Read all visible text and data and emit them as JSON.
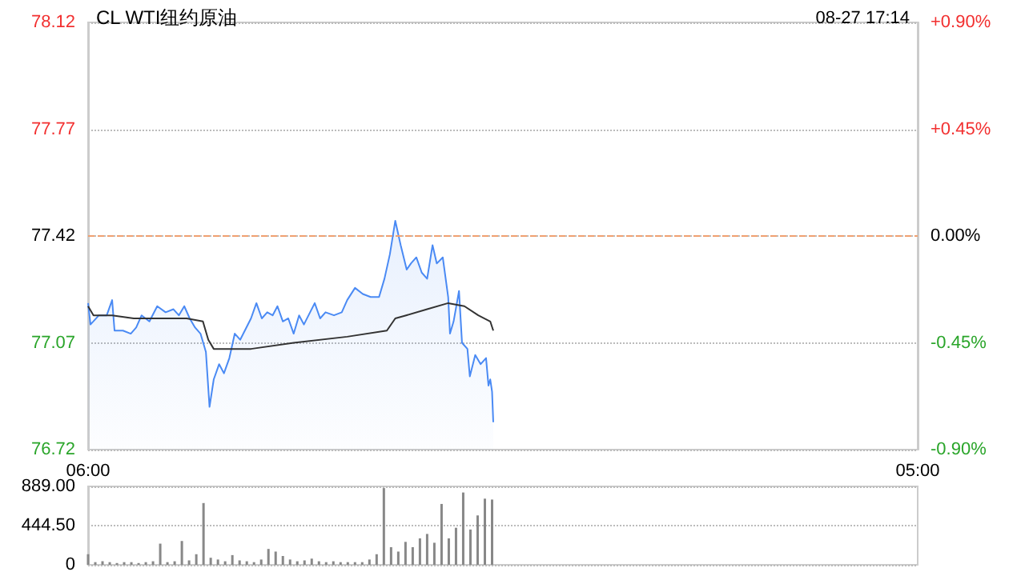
{
  "chart_data": [
    {
      "type": "line",
      "title": "CL WTI纽约原油",
      "annotations": [
        "08-27 17:14"
      ],
      "xlim": [
        "--08-27T06:00",
        "--08-28T05:00"
      ],
      "xticks": [
        {
          "value": "--08-27T06:00",
          "label": "06:00"
        },
        {
          "value": "--08-28T05:00",
          "label": "05:00"
        }
      ],
      "ylim": [
        76.72,
        78.12
      ],
      "yticks": [
        76.72,
        77.07,
        77.42,
        77.77,
        78.12
      ],
      "y2lim": [
        -0.9,
        0.9
      ],
      "y2ticks": [
        {
          "value": -0.9,
          "label": "-0.90%"
        },
        {
          "value": -0.45,
          "label": "-0.45%"
        },
        {
          "value": 0,
          "label": "0.00%"
        },
        {
          "value": 0.45,
          "label": "+0.45%"
        },
        {
          "value": 0.9,
          "label": "+0.90%"
        }
      ],
      "grid": "y",
      "marker": "none",
      "ref_lines": [
        {
          "axis": "y",
          "value": 77.42,
          "color": "#f0a070",
          "line_style": "dashed"
        }
      ],
      "series": [
        {
          "type": "area",
          "color": "#4a8af4",
          "x": [
            "--08-27T06:00",
            "--08-27T06:04",
            "--08-27T06:18",
            "--08-27T06:31",
            "--08-27T06:40",
            "--08-27T06:44",
            "--08-27T06:58",
            "--08-27T07:11",
            "--08-27T07:20",
            "--08-27T07:29",
            "--08-27T07:42",
            "--08-27T07:55",
            "--08-27T08:09",
            "--08-27T08:22",
            "--08-27T08:31",
            "--08-27T08:40",
            "--08-27T08:49",
            "--08-27T08:58",
            "--08-27T09:07",
            "--08-27T09:16",
            "--08-27T09:22",
            "--08-27T09:29",
            "--08-27T09:38",
            "--08-27T09:46",
            "--08-27T09:55",
            "--08-27T10:04",
            "--08-27T10:13",
            "--08-27T10:31",
            "--08-27T10:40",
            "--08-27T10:49",
            "--08-27T10:58",
            "--08-27T11:07",
            "--08-27T11:15",
            "--08-27T11:24",
            "--08-27T11:33",
            "--08-27T11:42",
            "--08-27T11:51",
            "--08-27T11:59",
            "--08-27T12:17",
            "--08-27T12:26",
            "--08-27T12:35",
            "--08-27T12:49",
            "--08-27T13:02",
            "--08-27T13:11",
            "--08-27T13:24",
            "--08-27T13:37",
            "--08-27T13:50",
            "--08-27T14:04",
            "--08-27T14:13",
            "--08-27T14:22",
            "--08-27T14:31",
            "--08-27T14:40",
            "--08-27T14:50",
            "--08-27T14:57",
            "--08-27T15:06",
            "--08-27T15:15",
            "--08-27T15:24",
            "--08-27T15:33",
            "--08-27T15:40",
            "--08-27T15:50",
            "--08-27T15:59",
            "--08-27T16:02",
            "--08-27T16:08",
            "--08-27T16:17",
            "--08-27T16:22",
            "--08-27T16:31",
            "--08-27T16:35",
            "--08-27T16:44",
            "--08-27T16:53",
            "--08-27T17:02",
            "--08-27T17:06",
            "--08-27T17:09",
            "--08-27T17:12",
            "--08-27T17:14"
          ],
          "values": [
            77.2,
            77.13,
            77.16,
            77.16,
            77.21,
            77.11,
            77.11,
            77.1,
            77.12,
            77.16,
            77.14,
            77.19,
            77.17,
            77.18,
            77.16,
            77.19,
            77.15,
            77.12,
            77.1,
            77.04,
            76.86,
            76.95,
            77.0,
            76.97,
            77.02,
            77.1,
            77.08,
            77.15,
            77.2,
            77.15,
            77.17,
            77.16,
            77.19,
            77.14,
            77.15,
            77.1,
            77.16,
            77.13,
            77.2,
            77.15,
            77.17,
            77.16,
            77.17,
            77.21,
            77.25,
            77.23,
            77.22,
            77.22,
            77.28,
            77.36,
            77.47,
            77.39,
            77.31,
            77.33,
            77.35,
            77.3,
            77.28,
            77.39,
            77.33,
            77.35,
            77.22,
            77.1,
            77.14,
            77.24,
            77.07,
            77.05,
            76.96,
            77.03,
            77.0,
            77.02,
            76.93,
            76.95,
            76.91,
            76.81
          ]
        },
        {
          "type": "line",
          "color": "#333333",
          "x": [
            "--08-27T06:00",
            "--08-27T06:09",
            "--08-27T06:40",
            "--08-27T07:16",
            "--08-27T08:00",
            "--08-27T08:44",
            "--08-27T09:11",
            "--08-27T09:20",
            "--08-27T09:29",
            "--08-27T09:55",
            "--08-27T10:31",
            "--08-27T11:42",
            "--08-27T13:11",
            "--08-27T14:17",
            "--08-27T14:31",
            "--08-27T14:49",
            "--08-27T15:24",
            "--08-27T15:59",
            "--08-27T16:26",
            "--08-27T16:49",
            "--08-27T17:09",
            "--08-27T17:14"
          ],
          "values": [
            77.19,
            77.16,
            77.16,
            77.15,
            77.15,
            77.15,
            77.14,
            77.08,
            77.05,
            77.05,
            77.05,
            77.07,
            77.09,
            77.11,
            77.15,
            77.16,
            77.18,
            77.2,
            77.19,
            77.16,
            77.14,
            77.11
          ]
        }
      ]
    },
    {
      "type": "bar",
      "color": "#888888",
      "xlim": [
        "--08-27T06:00",
        "--08-28T05:00"
      ],
      "ylim": [
        0,
        889
      ],
      "yticks": [
        0,
        {
          "value": 444.5,
          "label": "444.50"
        },
        {
          "value": 889,
          "label": "889.00"
        }
      ],
      "grid": "y",
      "tick_labels": "y",
      "x": [
        "--08-27T06:00",
        "--08-27T06:12",
        "--08-27T06:24",
        "--08-27T06:36",
        "--08-27T06:48",
        "--08-27T07:00",
        "--08-27T07:12",
        "--08-27T07:24",
        "--08-27T07:36",
        "--08-27T07:48",
        "--08-27T08:00",
        "--08-27T08:12",
        "--08-27T08:24",
        "--08-27T08:36",
        "--08-27T08:48",
        "--08-27T09:00",
        "--08-27T09:12",
        "--08-27T09:24",
        "--08-27T09:36",
        "--08-27T09:48",
        "--08-27T10:00",
        "--08-27T10:12",
        "--08-27T10:24",
        "--08-27T10:36",
        "--08-27T10:48",
        "--08-27T11:00",
        "--08-27T11:12",
        "--08-27T11:24",
        "--08-27T11:36",
        "--08-27T11:48",
        "--08-27T12:00",
        "--08-27T12:12",
        "--08-27T12:24",
        "--08-27T12:36",
        "--08-27T12:48",
        "--08-27T13:00",
        "--08-27T13:12",
        "--08-27T13:24",
        "--08-27T13:36",
        "--08-27T13:48",
        "--08-27T14:00",
        "--08-27T14:12",
        "--08-27T14:24",
        "--08-27T14:36",
        "--08-27T14:48",
        "--08-27T15:00",
        "--08-27T15:12",
        "--08-27T15:24",
        "--08-27T15:36",
        "--08-27T15:48",
        "--08-27T16:00",
        "--08-27T16:12",
        "--08-27T16:24",
        "--08-27T16:36",
        "--08-27T16:48",
        "--08-27T17:00",
        "--08-27T17:12"
      ],
      "values": [
        120,
        30,
        40,
        30,
        20,
        30,
        30,
        20,
        30,
        40,
        240,
        30,
        40,
        270,
        50,
        120,
        700,
        80,
        60,
        40,
        110,
        50,
        40,
        30,
        60,
        180,
        150,
        100,
        60,
        40,
        50,
        70,
        40,
        30,
        40,
        30,
        30,
        30,
        30,
        60,
        120,
        870,
        200,
        150,
        260,
        200,
        300,
        350,
        250,
        690,
        300,
        420,
        820,
        400,
        560,
        750,
        740
      ]
    }
  ]
}
